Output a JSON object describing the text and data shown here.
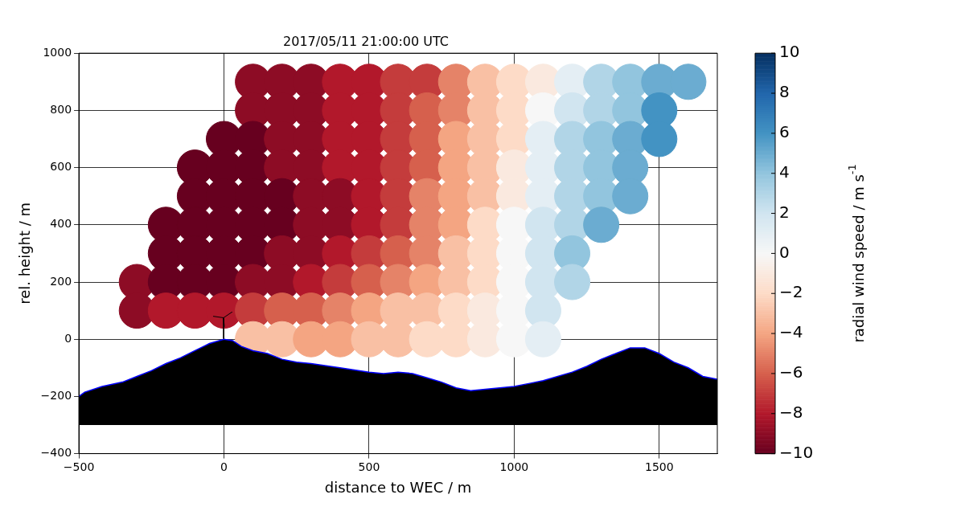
{
  "chart_data": {
    "type": "scatter",
    "title": "2017/05/11 21:00:00 UTC",
    "xlabel": "distance to WEC / m",
    "ylabel": "rel. height / m",
    "clabel": "radial wind speed / m s$^{-1}$",
    "xlim": [
      -500,
      1700
    ],
    "xticks": [
      {
        "value": -500,
        "label": "−500"
      },
      0,
      500,
      1000,
      1500
    ],
    "ylim": [
      -400,
      1000
    ],
    "yticks": [
      {
        "value": -400,
        "label": "−400"
      },
      {
        "value": -200,
        "label": "−200"
      },
      0,
      200,
      400,
      600,
      800,
      1000
    ],
    "clim": [
      -10,
      10
    ],
    "cticks": [
      {
        "value": -10,
        "label": "−10"
      },
      {
        "value": -8,
        "label": "−8"
      },
      {
        "value": -6,
        "label": "−6"
      },
      {
        "value": -4,
        "label": "−4"
      },
      {
        "value": -2,
        "label": "−2"
      },
      0,
      2,
      4,
      6,
      8,
      10
    ],
    "grid": true,
    "legend": false,
    "series": [
      {
        "type": "area",
        "color": "#000000",
        "x": [
          -500,
          -480,
          -420,
          -350,
          -300,
          -250,
          -200,
          -150,
          -100,
          -50,
          0,
          30,
          60,
          100,
          150,
          200,
          250,
          300,
          400,
          500,
          550,
          600,
          650,
          700,
          750,
          800,
          850,
          950,
          1000,
          1050,
          1100,
          1200,
          1250,
          1300,
          1350,
          1400,
          1450,
          1500,
          1550,
          1600,
          1650,
          1700,
          1700,
          -500
        ],
        "values": [
          -200,
          -185,
          -165,
          -150,
          -130,
          -110,
          -85,
          -65,
          -40,
          -15,
          0,
          -5,
          -25,
          -40,
          -50,
          -70,
          -80,
          -85,
          -100,
          -115,
          -120,
          -115,
          -120,
          -135,
          -150,
          -170,
          -180,
          -170,
          -165,
          -155,
          -145,
          -115,
          -95,
          -70,
          -50,
          -30,
          -30,
          -50,
          -80,
          -100,
          -130,
          -140,
          -300,
          -300
        ]
      },
      {
        "type": "scatter",
        "marker": "circle",
        "x": [
          100,
          200,
          300,
          400,
          500,
          600,
          700,
          800,
          900,
          1000,
          1100
        ],
        "values": [
          0,
          0,
          0,
          0,
          0,
          0,
          0,
          0,
          0,
          0,
          0
        ],
        "cvalues": [
          -3,
          -3,
          -4,
          -4,
          -3,
          -3,
          -2,
          -2,
          -1,
          0,
          1
        ],
        "colors": [
          "#f9c0a5",
          "#f9c0a5",
          "#f4a582",
          "#f4a582",
          "#f9c0a5",
          "#f9c0a5",
          "#fddbc7",
          "#fddbc7",
          "#faeadf",
          "#f7f7f7",
          "#e4eef4"
        ]
      },
      {
        "type": "scatter",
        "marker": "circle",
        "x": [
          -300,
          -200,
          -100,
          0,
          100,
          200,
          300,
          400,
          500,
          600,
          700,
          800,
          900,
          1000,
          1100
        ],
        "values": [
          100,
          100,
          100,
          100,
          100,
          100,
          100,
          100,
          100,
          100,
          100,
          100,
          100,
          100,
          100
        ],
        "cvalues": [
          -9,
          -8,
          -8,
          -8,
          -7,
          -6,
          -6,
          -5,
          -4,
          -3,
          -3,
          -2,
          -1,
          0,
          2
        ],
        "colors": [
          "#8d0c25",
          "#b2182b",
          "#b2182b",
          "#b2182b",
          "#c43c3c",
          "#d6604d",
          "#d6604d",
          "#e58368",
          "#f4a582",
          "#f9c0a5",
          "#f9c0a5",
          "#fddbc7",
          "#faeadf",
          "#f7f7f7",
          "#d1e5f0"
        ]
      },
      {
        "type": "scatter",
        "marker": "circle",
        "x": [
          -300,
          -200,
          -100,
          0,
          100,
          200,
          300,
          400,
          500,
          600,
          700,
          800,
          900,
          1000,
          1100,
          1200
        ],
        "values": [
          200,
          200,
          200,
          200,
          200,
          200,
          200,
          200,
          200,
          200,
          200,
          200,
          200,
          200,
          200,
          200
        ],
        "cvalues": [
          -9,
          -10,
          -10,
          -10,
          -9,
          -9,
          -8,
          -7,
          -6,
          -5,
          -4,
          -3,
          -2,
          0,
          2,
          3
        ],
        "colors": [
          "#8d0c25",
          "#67001f",
          "#67001f",
          "#67001f",
          "#8d0c25",
          "#8d0c25",
          "#b2182b",
          "#c43c3c",
          "#d6604d",
          "#e58368",
          "#f4a582",
          "#f9c0a5",
          "#fddbc7",
          "#f7f7f7",
          "#d1e5f0",
          "#b2d5e7"
        ]
      },
      {
        "type": "scatter",
        "marker": "circle",
        "x": [
          -200,
          -100,
          0,
          100,
          200,
          300,
          400,
          500,
          600,
          700,
          800,
          900,
          1000,
          1100,
          1200
        ],
        "values": [
          300,
          300,
          300,
          300,
          300,
          300,
          300,
          300,
          300,
          300,
          300,
          300,
          300,
          300,
          300
        ],
        "cvalues": [
          -10,
          -10,
          -10,
          -10,
          -9,
          -9,
          -8,
          -7,
          -6,
          -5,
          -3,
          -2,
          0,
          2,
          4
        ],
        "colors": [
          "#67001f",
          "#67001f",
          "#67001f",
          "#67001f",
          "#8d0c25",
          "#8d0c25",
          "#b2182b",
          "#c43c3c",
          "#d6604d",
          "#e58368",
          "#f9c0a5",
          "#fddbc7",
          "#f7f7f7",
          "#d1e5f0",
          "#92c5de"
        ]
      },
      {
        "type": "scatter",
        "marker": "circle",
        "x": [
          -200,
          -100,
          0,
          100,
          200,
          300,
          400,
          500,
          600,
          700,
          800,
          900,
          1000,
          1100,
          1200,
          1300
        ],
        "values": [
          400,
          400,
          400,
          400,
          400,
          400,
          400,
          400,
          400,
          400,
          400,
          400,
          400,
          400,
          400,
          400
        ],
        "cvalues": [
          -10,
          -10,
          -10,
          -10,
          -10,
          -9,
          -9,
          -8,
          -7,
          -5,
          -4,
          -2,
          0,
          2,
          3,
          5
        ],
        "colors": [
          "#67001f",
          "#67001f",
          "#67001f",
          "#67001f",
          "#67001f",
          "#8d0c25",
          "#8d0c25",
          "#b2182b",
          "#c43c3c",
          "#e58368",
          "#f4a582",
          "#fddbc7",
          "#f7f7f7",
          "#d1e5f0",
          "#b2d5e7",
          "#6baccf"
        ]
      },
      {
        "type": "scatter",
        "x": [
          -100,
          0,
          100,
          200,
          300,
          400,
          500,
          600,
          700,
          800,
          900,
          1000,
          1100,
          1200,
          1300,
          1400
        ],
        "values": [
          500,
          500,
          500,
          500,
          500,
          500,
          500,
          500,
          500,
          500,
          500,
          500,
          500,
          500,
          500,
          500
        ],
        "marker": "circle",
        "cvalues": [
          -10,
          -10,
          -10,
          -10,
          -9,
          -9,
          -8,
          -7,
          -5,
          -4,
          -3,
          -1,
          1,
          3,
          4,
          5
        ],
        "colors": [
          "#67001f",
          "#67001f",
          "#67001f",
          "#67001f",
          "#8d0c25",
          "#8d0c25",
          "#b2182b",
          "#c43c3c",
          "#e58368",
          "#f4a582",
          "#f9c0a5",
          "#faeadf",
          "#e4eef4",
          "#b2d5e7",
          "#92c5de",
          "#6baccf"
        ]
      },
      {
        "type": "scatter",
        "x": [
          -100,
          0,
          100,
          200,
          300,
          400,
          500,
          600,
          700,
          800,
          900,
          1000,
          1100,
          1200,
          1300,
          1400
        ],
        "values": [
          600,
          600,
          600,
          600,
          600,
          600,
          600,
          600,
          600,
          600,
          600,
          600,
          600,
          600,
          600,
          600
        ],
        "marker": "circle",
        "cvalues": [
          -10,
          -10,
          -10,
          -9,
          -9,
          -8,
          -8,
          -7,
          -6,
          -4,
          -3,
          -1,
          1,
          3,
          4,
          5
        ],
        "colors": [
          "#67001f",
          "#67001f",
          "#67001f",
          "#8d0c25",
          "#8d0c25",
          "#b2182b",
          "#b2182b",
          "#c43c3c",
          "#d6604d",
          "#f4a582",
          "#f9c0a5",
          "#faeadf",
          "#e4eef4",
          "#b2d5e7",
          "#92c5de",
          "#6baccf"
        ]
      },
      {
        "type": "scatter",
        "x": [
          0,
          100,
          200,
          300,
          400,
          500,
          600,
          700,
          800,
          900,
          1000,
          1100,
          1200,
          1300,
          1400,
          1500
        ],
        "values": [
          700,
          700,
          700,
          700,
          700,
          700,
          700,
          700,
          700,
          700,
          700,
          700,
          700,
          700,
          700,
          700
        ],
        "marker": "circle",
        "cvalues": [
          -10,
          -10,
          -9,
          -9,
          -8,
          -8,
          -7,
          -6,
          -4,
          -3,
          -2,
          1,
          3,
          4,
          5,
          6
        ],
        "colors": [
          "#67001f",
          "#67001f",
          "#8d0c25",
          "#8d0c25",
          "#b2182b",
          "#b2182b",
          "#c43c3c",
          "#d6604d",
          "#f4a582",
          "#f9c0a5",
          "#fddbc7",
          "#e4eef4",
          "#b2d5e7",
          "#92c5de",
          "#6baccf",
          "#4393c3"
        ]
      },
      {
        "type": "scatter",
        "x": [
          100,
          200,
          300,
          400,
          500,
          600,
          700,
          800,
          900,
          1000,
          1100,
          1200,
          1300,
          1400,
          1500
        ],
        "values": [
          800,
          800,
          800,
          800,
          800,
          800,
          800,
          800,
          800,
          800,
          800,
          800,
          800,
          800,
          800
        ],
        "marker": "circle",
        "cvalues": [
          -9,
          -9,
          -9,
          -8,
          -8,
          -7,
          -6,
          -5,
          -3,
          -2,
          0,
          2,
          3,
          4,
          6
        ],
        "colors": [
          "#8d0c25",
          "#8d0c25",
          "#8d0c25",
          "#b2182b",
          "#b2182b",
          "#c43c3c",
          "#d6604d",
          "#e58368",
          "#f9c0a5",
          "#fddbc7",
          "#f7f7f7",
          "#d1e5f0",
          "#b2d5e7",
          "#92c5de",
          "#4393c3"
        ]
      },
      {
        "type": "scatter",
        "x": [
          100,
          200,
          300,
          400,
          500,
          600,
          700,
          800,
          900,
          1000,
          1100,
          1200,
          1300,
          1400,
          1500,
          1600
        ],
        "values": [
          900,
          900,
          900,
          900,
          900,
          900,
          900,
          900,
          900,
          900,
          900,
          900,
          900,
          900,
          900,
          900
        ],
        "marker": "circle",
        "cvalues": [
          -9,
          -9,
          -9,
          -8,
          -8,
          -7,
          -7,
          -5,
          -3,
          -2,
          -1,
          1,
          3,
          4,
          5,
          5
        ],
        "colors": [
          "#8d0c25",
          "#8d0c25",
          "#8d0c25",
          "#b2182b",
          "#b2182b",
          "#c43c3c",
          "#c43c3c",
          "#e58368",
          "#f9c0a5",
          "#fddbc7",
          "#faeadf",
          "#e4eef4",
          "#b2d5e7",
          "#92c5de",
          "#6baccf",
          "#6baccf"
        ]
      }
    ]
  }
}
